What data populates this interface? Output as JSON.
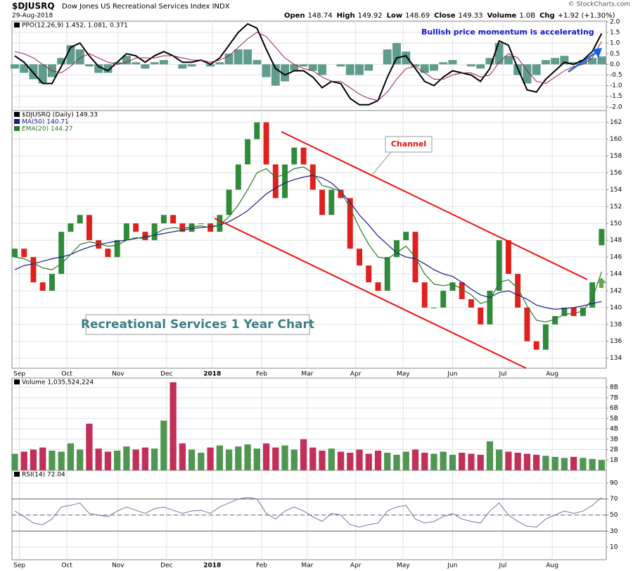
{
  "header": {
    "symbol": "$DJUSRQ",
    "name": "Dow Jones US Recreational Services Index INDX",
    "date": "29-Aug-2018",
    "copyright": "© StockCharts.com",
    "quote": [
      {
        "label": "Open",
        "value": "148.74"
      },
      {
        "label": "High",
        "value": "149.92"
      },
      {
        "label": "Low",
        "value": "148.69"
      },
      {
        "label": "Close",
        "value": "149.33"
      },
      {
        "label": "Volume",
        "value": "1.0B"
      },
      {
        "label": "Chg",
        "value": "+1.92 (+1.30%)"
      }
    ]
  },
  "chart_data": [
    {
      "type": "ppo",
      "title": "PPO(12,26,9) 1.452, 1.081, 0.371",
      "annotation": "Bullish price momentum is accelerating",
      "xlim": [
        -0.3,
        63.5
      ],
      "ylim": [
        -2.17,
        2.03
      ],
      "yticks": [
        {
          "value": 2,
          "label": "2.0"
        },
        1.5,
        {
          "value": 1,
          "label": "1.0"
        },
        0.5,
        {
          "value": 0,
          "label": "0.0"
        },
        {
          "value": -0.5,
          "label": "-0.5"
        },
        {
          "value": -1,
          "label": "-1.0"
        },
        {
          "value": -1.5,
          "label": "-1.5"
        },
        {
          "value": -2,
          "label": "-2.0"
        }
      ],
      "histogram": {
        "color": "#5e9c8c",
        "values": [
          -0.2,
          -0.4,
          -0.7,
          -0.9,
          -0.6,
          0.3,
          0.9,
          0.7,
          -0.1,
          -0.4,
          -0.4,
          0.1,
          0.4,
          0.1,
          -0.2,
          0.1,
          0.2,
          0,
          -0.2,
          -0.1,
          0,
          -0.1,
          0.1,
          0.5,
          0.7,
          0.7,
          0.2,
          -0.6,
          -1.0,
          -0.8,
          -0.3,
          -0.1,
          -0.3,
          -0.5,
          0,
          -0.1,
          -0.5,
          -0.5,
          -0.3,
          0,
          0.7,
          1.0,
          0.6,
          -0.1,
          -0.4,
          -0.3,
          0.1,
          0.2,
          0,
          -0.1,
          -0.2,
          0.3,
          1.0,
          0.4,
          -0.5,
          -0.9,
          -0.5,
          0.2,
          0.3,
          0.4,
          0.1,
          0.2,
          0.3,
          0.371
        ]
      },
      "series": [
        {
          "color": "#000000",
          "width": 2,
          "values": [
            0.4,
            0.1,
            -0.4,
            -0.9,
            -0.9,
            -0.1,
            0.8,
            1.0,
            0.4,
            -0.1,
            -0.3,
            0.1,
            0.5,
            0.4,
            0.1,
            0.4,
            0.6,
            0.4,
            0.1,
            0.1,
            0.2,
            0,
            0.3,
            0.9,
            1.5,
            1.9,
            1.7,
            0.7,
            -0.2,
            -0.5,
            -0.3,
            -0.3,
            -0.6,
            -1.1,
            -0.8,
            -0.9,
            -1.6,
            -1.9,
            -1.9,
            -1.7,
            -0.6,
            0.3,
            0.4,
            -0.2,
            -0.8,
            -1.0,
            -0.6,
            -0.3,
            -0.4,
            -0.5,
            -0.8,
            -0.2,
            1.1,
            0.9,
            -0.2,
            -1.2,
            -1.3,
            -0.7,
            -0.3,
            0.1,
            0.0,
            0.2,
            0.6,
            1.452
          ]
        },
        {
          "color": "#9a2040",
          "width": 1,
          "values": [
            0.6,
            0.5,
            0.3,
            0,
            -0.3,
            -0.4,
            -0.1,
            0.3,
            0.5,
            0.3,
            0.1,
            0,
            0.1,
            0.3,
            0.3,
            0.3,
            0.4,
            0.4,
            0.3,
            0.2,
            0.2,
            0.1,
            0.2,
            0.4,
            0.8,
            1.2,
            1.5,
            1.3,
            0.8,
            0.3,
            0,
            -0.2,
            -0.3,
            -0.6,
            -0.8,
            -0.8,
            -1.1,
            -1.4,
            -1.6,
            -1.7,
            -1.3,
            -0.7,
            -0.2,
            -0.1,
            -0.4,
            -0.7,
            -0.7,
            -0.5,
            -0.4,
            -0.4,
            -0.6,
            -0.5,
            0.1,
            0.5,
            0.3,
            -0.3,
            -0.8,
            -0.9,
            -0.6,
            -0.3,
            -0.1,
            0,
            0.3,
            1.081
          ]
        }
      ]
    },
    {
      "type": "candlestick",
      "title": "$DJUSRQ (Daily) 149.33",
      "annotations": [
        "Channel",
        "Recreational Services 1 Year Chart"
      ],
      "up_color": "#2f8a3a",
      "down_color": "#e0201e",
      "xlim": [
        -0.3,
        63.5
      ],
      "ylim": [
        132.8,
        163.4
      ],
      "xticks": [
        {
          "value": 0.5,
          "label": "Sep"
        },
        {
          "value": 5.6,
          "label": "Oct"
        },
        {
          "value": 11.1,
          "label": "Nov"
        },
        {
          "value": 16.3,
          "label": "Dec"
        },
        {
          "value": 21.2,
          "label": "2018"
        },
        {
          "value": 26.5,
          "label": "Feb"
        },
        {
          "value": 31.4,
          "label": "Mar"
        },
        {
          "value": 36.6,
          "label": "Apr"
        },
        {
          "value": 41.7,
          "label": "May"
        },
        {
          "value": 47,
          "label": "Jun"
        },
        {
          "value": 52.4,
          "label": "Jul"
        },
        {
          "value": 57.7,
          "label": "Aug"
        }
      ],
      "yticks": [
        134,
        136,
        138,
        140,
        142,
        144,
        146,
        148,
        150,
        152,
        154,
        156,
        158,
        160,
        162
      ],
      "open": [
        146,
        147,
        146,
        143,
        142,
        144,
        149,
        150,
        151,
        148,
        147,
        146,
        148,
        150,
        149,
        148,
        150,
        151,
        150,
        149,
        150,
        150,
        149,
        151,
        154,
        157,
        160,
        162,
        157,
        153,
        157,
        159,
        157,
        154,
        151,
        154,
        153,
        147,
        145,
        143,
        142,
        146,
        148,
        149,
        143,
        140,
        140,
        142,
        143,
        141,
        140,
        138,
        142,
        148,
        144,
        140,
        136,
        135,
        138,
        139,
        140,
        139,
        140,
        147.4
      ],
      "close": [
        147,
        146,
        143,
        142,
        144,
        149,
        150,
        151,
        148,
        147,
        146,
        148,
        150,
        149,
        148,
        150,
        151,
        150,
        149,
        150,
        150,
        149,
        151,
        154,
        157,
        160,
        162,
        157,
        153,
        157,
        159,
        157,
        154,
        151,
        154,
        153,
        147,
        145,
        143,
        142,
        146,
        148,
        149,
        143,
        140,
        140,
        142,
        143,
        141,
        140,
        138,
        142,
        148,
        144,
        140,
        136,
        135,
        138,
        139,
        140,
        139,
        140,
        143,
        149.33
      ],
      "series": [
        {
          "name": "MA(50) 140.71",
          "color": "#1c1c8a",
          "values": [
            144.5,
            145,
            145.2,
            145.5,
            145.8,
            146,
            146.3,
            146.8,
            147.2,
            147.5,
            147.7,
            147.9,
            148,
            148.2,
            148.4,
            148.6,
            148.8,
            149,
            149.2,
            149.4,
            149.5,
            149.6,
            149.8,
            150.2,
            150.8,
            151.5,
            152.5,
            153.5,
            154.2,
            154.8,
            155.2,
            155.5,
            155.7,
            155.4,
            154.8,
            153.8,
            152.5,
            151,
            149.8,
            148.5,
            147.5,
            146.5,
            146,
            145.8,
            145.2,
            144.5,
            144,
            143.7,
            143,
            142.2,
            141.5,
            141.2,
            141.8,
            142,
            141.5,
            141,
            140.3,
            140,
            139.8,
            139.9,
            140,
            140.2,
            140.5,
            140.71
          ]
        },
        {
          "name": "EMA(20) 144.27",
          "color": "#2a7a2a",
          "values": [
            146,
            145.8,
            145.3,
            144.7,
            144.5,
            145.2,
            146.3,
            147.5,
            147.8,
            147.6,
            147.3,
            147.4,
            148,
            148.3,
            148.2,
            148.7,
            149.3,
            149.5,
            149.4,
            149.6,
            149.7,
            149.5,
            149.8,
            150.8,
            152.2,
            154,
            156,
            156.5,
            155.5,
            155.8,
            156.5,
            156.7,
            156,
            154.5,
            154.2,
            153.8,
            151.8,
            149.5,
            147.5,
            146,
            145.8,
            146.5,
            147.3,
            146,
            144,
            142.8,
            142.6,
            142.8,
            142.2,
            141.5,
            140.5,
            140.8,
            143,
            143.3,
            142.3,
            140.2,
            138.5,
            138.3,
            138.6,
            139.2,
            139.3,
            139.6,
            141,
            144.27
          ]
        }
      ]
    },
    {
      "type": "bar",
      "title": "Volume 1,035,524,224",
      "up_color": "#4f9650",
      "down_color": "#c2305a",
      "xlim": [
        -0.3,
        63.5
      ],
      "ylim": [
        0,
        8.9
      ],
      "yticks": [
        {
          "value": 1,
          "label": "1B"
        },
        {
          "value": 2,
          "label": "2B"
        },
        {
          "value": 3,
          "label": "3B"
        },
        {
          "value": 4,
          "label": "4B"
        },
        {
          "value": 5,
          "label": "5B"
        },
        {
          "value": 6,
          "label": "6B"
        },
        {
          "value": 7,
          "label": "7B"
        },
        {
          "value": 8,
          "label": "8B"
        }
      ],
      "values": [
        1.6,
        1.8,
        2.0,
        2.2,
        1.9,
        1.8,
        2.6,
        2.0,
        4.5,
        2.1,
        1.8,
        1.9,
        2.3,
        2.0,
        2.2,
        2.1,
        4.8,
        8.5,
        2.6,
        2.0,
        1.7,
        2.2,
        2.4,
        2.0,
        2.3,
        2.5,
        2.1,
        2.6,
        2.2,
        2.4,
        2.0,
        3.0,
        2.2,
        1.9,
        2.1,
        1.8,
        1.7,
        2.0,
        1.6,
        1.9,
        1.7,
        1.5,
        1.8,
        2.0,
        1.7,
        1.6,
        1.8,
        1.5,
        1.7,
        1.6,
        1.5,
        2.8,
        2.0,
        1.8,
        1.7,
        1.6,
        1.5,
        1.4,
        1.3,
        1.2,
        1.3,
        1.2,
        1.1,
        1.0
      ]
    },
    {
      "type": "line",
      "title": "RSI(14) 72.04",
      "color": "#6b7ba3",
      "xlim": [
        -0.3,
        63.5
      ],
      "ylim": [
        -5.8,
        105.8
      ],
      "yticks": [
        10,
        30,
        50,
        70,
        90
      ],
      "ref_lines": [
        70,
        50,
        30
      ],
      "xticks": [
        {
          "value": 0.5,
          "label": "Sep"
        },
        {
          "value": 5.6,
          "label": "Oct"
        },
        {
          "value": 11.1,
          "label": "Nov"
        },
        {
          "value": 16.3,
          "label": "Dec"
        },
        {
          "value": 21.2,
          "label": "2018"
        },
        {
          "value": 26.5,
          "label": "Feb"
        },
        {
          "value": 31.4,
          "label": "Mar"
        },
        {
          "value": 36.6,
          "label": "Apr"
        },
        {
          "value": 41.7,
          "label": "May"
        },
        {
          "value": 47,
          "label": "Jun"
        },
        {
          "value": 52.4,
          "label": "Jul"
        },
        {
          "value": 57.7,
          "label": "Aug"
        }
      ],
      "values": [
        55,
        48,
        40,
        38,
        45,
        60,
        62,
        65,
        52,
        50,
        48,
        55,
        60,
        56,
        52,
        58,
        60,
        56,
        52,
        55,
        56,
        52,
        60,
        65,
        70,
        72,
        70,
        52,
        45,
        55,
        60,
        55,
        48,
        42,
        52,
        50,
        38,
        35,
        38,
        40,
        55,
        60,
        62,
        45,
        40,
        42,
        48,
        52,
        45,
        42,
        40,
        55,
        65,
        50,
        42,
        36,
        35,
        45,
        50,
        55,
        52,
        55,
        62,
        72.04
      ]
    }
  ]
}
